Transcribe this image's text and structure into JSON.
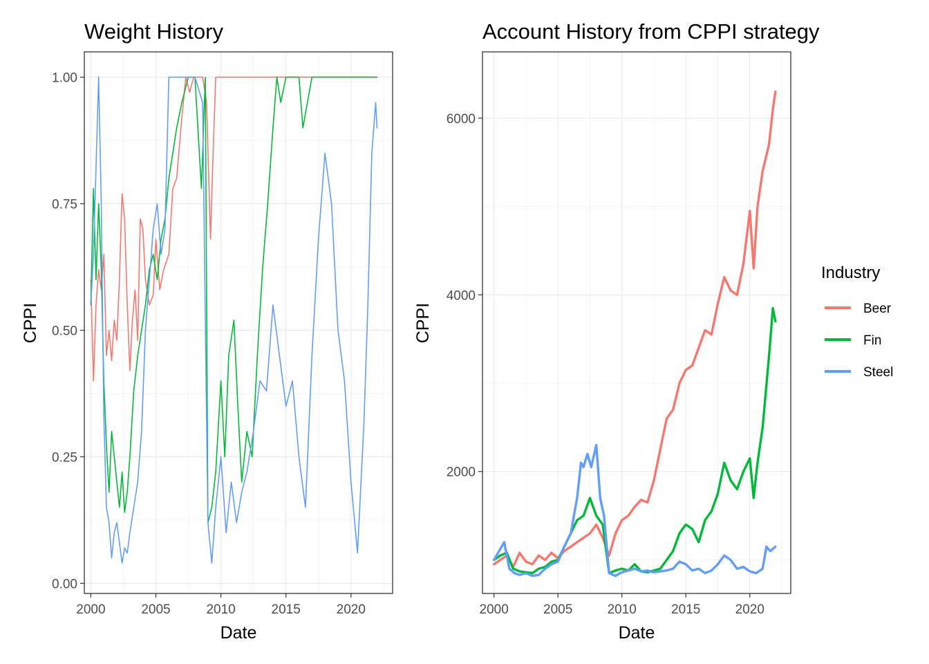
{
  "chart_data": [
    {
      "type": "line",
      "title": "Weight History",
      "xlabel": "Date",
      "ylabel": "CPPI",
      "xlim": [
        1999.5,
        2023.2
      ],
      "ylim": [
        -0.02,
        1.05
      ],
      "x_ticks": [
        "2000",
        "2005",
        "2010",
        "2015",
        "2020"
      ],
      "y_ticks": [
        "0.00",
        "0.25",
        "0.50",
        "0.75",
        "1.00"
      ],
      "grid": true,
      "line_width": 1.6,
      "series": [
        {
          "key": "Beer",
          "color": "#F8766D",
          "x": [
            2000.0,
            2000.2,
            2000.4,
            2000.6,
            2000.8,
            2001.0,
            2001.2,
            2001.4,
            2001.6,
            2001.8,
            2002.0,
            2002.2,
            2002.4,
            2002.6,
            2002.8,
            2003.0,
            2003.2,
            2003.4,
            2003.6,
            2003.8,
            2004.0,
            2004.2,
            2004.5,
            2004.8,
            2005.0,
            2005.3,
            2005.6,
            2006.0,
            2006.3,
            2006.6,
            2007.0,
            2007.3,
            2007.6,
            2007.9,
            2008.2,
            2008.6,
            2008.9,
            2009.2,
            2009.4,
            2009.6,
            2010.0,
            2012.0,
            2015.0,
            2018.0,
            2020.0,
            2022.0
          ],
          "y": [
            0.6,
            0.4,
            0.55,
            0.62,
            0.58,
            0.65,
            0.45,
            0.5,
            0.44,
            0.52,
            0.48,
            0.6,
            0.77,
            0.72,
            0.55,
            0.42,
            0.52,
            0.58,
            0.48,
            0.72,
            0.7,
            0.6,
            0.55,
            0.57,
            0.68,
            0.58,
            0.62,
            0.65,
            0.78,
            0.8,
            0.92,
            1.0,
            0.97,
            1.0,
            1.0,
            1.0,
            0.95,
            0.68,
            0.85,
            1.0,
            1.0,
            1.0,
            1.0,
            1.0,
            1.0,
            1.0
          ]
        },
        {
          "key": "Fin",
          "color": "#00BA38",
          "x": [
            2000.0,
            2000.2,
            2000.4,
            2000.6,
            2000.8,
            2001.0,
            2001.2,
            2001.4,
            2001.6,
            2001.8,
            2002.0,
            2002.2,
            2002.4,
            2002.6,
            2002.8,
            2003.0,
            2003.3,
            2003.6,
            2003.9,
            2004.2,
            2004.5,
            2004.8,
            2005.1,
            2005.4,
            2005.7,
            2006.0,
            2006.3,
            2006.6,
            2007.0,
            2007.5,
            2008.0,
            2008.5,
            2008.8,
            2009.0,
            2009.3,
            2009.6,
            2010.0,
            2010.3,
            2010.6,
            2011.0,
            2011.3,
            2011.6,
            2012.0,
            2012.4,
            2012.8,
            2013.2,
            2013.6,
            2014.0,
            2014.3,
            2014.6,
            2015.0,
            2016.0,
            2016.3,
            2017.0,
            2022.0
          ],
          "y": [
            0.55,
            0.78,
            0.6,
            0.75,
            0.62,
            0.4,
            0.27,
            0.18,
            0.3,
            0.25,
            0.2,
            0.15,
            0.22,
            0.14,
            0.18,
            0.25,
            0.38,
            0.45,
            0.5,
            0.55,
            0.62,
            0.65,
            0.6,
            0.68,
            0.72,
            0.8,
            0.85,
            0.9,
            0.95,
            1.0,
            1.0,
            0.78,
            1.0,
            0.12,
            0.15,
            0.22,
            0.4,
            0.25,
            0.45,
            0.52,
            0.35,
            0.2,
            0.3,
            0.25,
            0.45,
            0.62,
            0.75,
            0.9,
            1.0,
            0.95,
            1.0,
            1.0,
            0.9,
            1.0,
            1.0
          ]
        },
        {
          "key": "Steel",
          "color": "#619CFF",
          "x": [
            2000.0,
            2000.2,
            2000.4,
            2000.6,
            2000.8,
            2001.0,
            2001.2,
            2001.4,
            2001.6,
            2001.8,
            2002.0,
            2002.2,
            2002.4,
            2002.6,
            2002.8,
            2003.0,
            2003.3,
            2003.6,
            2003.9,
            2004.2,
            2004.5,
            2004.8,
            2005.1,
            2005.4,
            2005.7,
            2006.0,
            2006.3,
            2008.0,
            2008.6,
            2008.8,
            2009.0,
            2009.3,
            2009.6,
            2010.0,
            2010.4,
            2010.8,
            2011.2,
            2011.6,
            2012.0,
            2012.5,
            2013.0,
            2013.5,
            2014.0,
            2014.5,
            2015.0,
            2015.5,
            2016.0,
            2016.5,
            2017.0,
            2017.5,
            2018.0,
            2018.5,
            2019.0,
            2019.5,
            2020.0,
            2020.5,
            2021.0,
            2021.3,
            2021.6,
            2021.9,
            2022.0
          ],
          "y": [
            0.55,
            0.65,
            0.82,
            1.0,
            0.75,
            0.33,
            0.15,
            0.12,
            0.05,
            0.1,
            0.12,
            0.08,
            0.04,
            0.07,
            0.06,
            0.1,
            0.15,
            0.2,
            0.3,
            0.5,
            0.6,
            0.7,
            0.75,
            0.65,
            0.7,
            1.0,
            1.0,
            1.0,
            0.95,
            0.52,
            0.12,
            0.04,
            0.15,
            0.25,
            0.1,
            0.2,
            0.12,
            0.18,
            0.22,
            0.3,
            0.4,
            0.38,
            0.55,
            0.45,
            0.35,
            0.4,
            0.25,
            0.15,
            0.45,
            0.68,
            0.85,
            0.75,
            0.5,
            0.4,
            0.2,
            0.06,
            0.32,
            0.55,
            0.85,
            0.95,
            0.9
          ]
        }
      ]
    },
    {
      "type": "line",
      "title": "Account History from CPPI strategy",
      "xlabel": "Date",
      "ylabel": "CPPI",
      "xlim": [
        1999.1,
        2023.2
      ],
      "ylim": [
        620,
        6750
      ],
      "x_ticks": [
        "2000",
        "2005",
        "2010",
        "2015",
        "2020"
      ],
      "y_ticks": [
        "2000",
        "4000",
        "6000"
      ],
      "grid": true,
      "line_width": 3.4,
      "series": [
        {
          "key": "Beer",
          "color": "#F8766D",
          "x": [
            2000.0,
            2000.5,
            2001.0,
            2001.5,
            2002.0,
            2002.5,
            2003.0,
            2003.5,
            2004.0,
            2004.5,
            2005.0,
            2005.5,
            2006.0,
            2006.5,
            2007.0,
            2007.5,
            2008.0,
            2008.5,
            2009.0,
            2009.5,
            2010.0,
            2010.5,
            2011.0,
            2011.5,
            2012.0,
            2012.5,
            2013.0,
            2013.5,
            2014.0,
            2014.5,
            2015.0,
            2015.5,
            2016.0,
            2016.5,
            2017.0,
            2017.5,
            2018.0,
            2018.5,
            2019.0,
            2019.5,
            2020.0,
            2020.3,
            2020.6,
            2021.0,
            2021.5,
            2021.8,
            2022.0
          ],
          "y": [
            950,
            1000,
            1050,
            920,
            1080,
            980,
            950,
            1050,
            1000,
            1080,
            1020,
            1100,
            1150,
            1200,
            1250,
            1300,
            1400,
            1250,
            1050,
            1300,
            1450,
            1500,
            1600,
            1680,
            1650,
            1900,
            2250,
            2600,
            2700,
            3000,
            3150,
            3200,
            3400,
            3600,
            3550,
            3900,
            4200,
            4050,
            4000,
            4350,
            4950,
            4300,
            5000,
            5400,
            5700,
            6100,
            6300
          ]
        },
        {
          "key": "Fin",
          "color": "#00BA38",
          "x": [
            2000.0,
            2000.5,
            2001.0,
            2001.5,
            2002.0,
            2002.5,
            2003.0,
            2003.5,
            2004.0,
            2004.5,
            2005.0,
            2005.5,
            2006.0,
            2006.5,
            2007.0,
            2007.5,
            2008.0,
            2008.5,
            2009.0,
            2009.5,
            2010.0,
            2010.5,
            2011.0,
            2011.5,
            2012.0,
            2012.5,
            2013.0,
            2013.5,
            2014.0,
            2014.5,
            2015.0,
            2015.5,
            2016.0,
            2016.5,
            2017.0,
            2017.5,
            2018.0,
            2018.5,
            2019.0,
            2019.5,
            2020.0,
            2020.3,
            2020.6,
            2021.0,
            2021.5,
            2021.8,
            2022.0
          ],
          "y": [
            1000,
            1050,
            1080,
            900,
            870,
            860,
            850,
            900,
            920,
            980,
            1000,
            1150,
            1300,
            1450,
            1500,
            1700,
            1500,
            1400,
            850,
            880,
            900,
            880,
            950,
            870,
            860,
            880,
            900,
            1000,
            1100,
            1300,
            1400,
            1350,
            1200,
            1450,
            1550,
            1750,
            2100,
            1900,
            1800,
            2000,
            2150,
            1700,
            2100,
            2500,
            3300,
            3850,
            3700
          ]
        },
        {
          "key": "Steel",
          "color": "#619CFF",
          "x": [
            2000.0,
            2000.4,
            2000.8,
            2001.2,
            2001.6,
            2002.0,
            2002.5,
            2003.0,
            2003.5,
            2004.0,
            2004.5,
            2005.0,
            2005.5,
            2006.0,
            2006.5,
            2006.8,
            2007.0,
            2007.3,
            2007.6,
            2008.0,
            2008.3,
            2008.6,
            2009.0,
            2009.5,
            2010.0,
            2010.5,
            2011.0,
            2011.5,
            2012.0,
            2012.5,
            2013.0,
            2013.5,
            2014.0,
            2014.5,
            2015.0,
            2015.5,
            2016.0,
            2016.5,
            2017.0,
            2017.5,
            2018.0,
            2018.5,
            2019.0,
            2019.5,
            2020.0,
            2020.5,
            2021.0,
            2021.3,
            2021.6,
            2022.0
          ],
          "y": [
            1000,
            1100,
            1200,
            900,
            850,
            830,
            850,
            820,
            830,
            900,
            950,
            980,
            1150,
            1300,
            1700,
            2100,
            2050,
            2200,
            2050,
            2300,
            1700,
            1500,
            850,
            820,
            860,
            880,
            900,
            870,
            880,
            860,
            870,
            880,
            900,
            980,
            950,
            880,
            900,
            850,
            880,
            950,
            1050,
            1000,
            900,
            920,
            870,
            850,
            900,
            1150,
            1100,
            1150
          ]
        }
      ]
    }
  ],
  "legend": {
    "title": "Industry",
    "entries": [
      {
        "label": "Beer",
        "color": "#F8766D"
      },
      {
        "label": "Fin",
        "color": "#00BA38"
      },
      {
        "label": "Steel",
        "color": "#619CFF"
      }
    ]
  }
}
